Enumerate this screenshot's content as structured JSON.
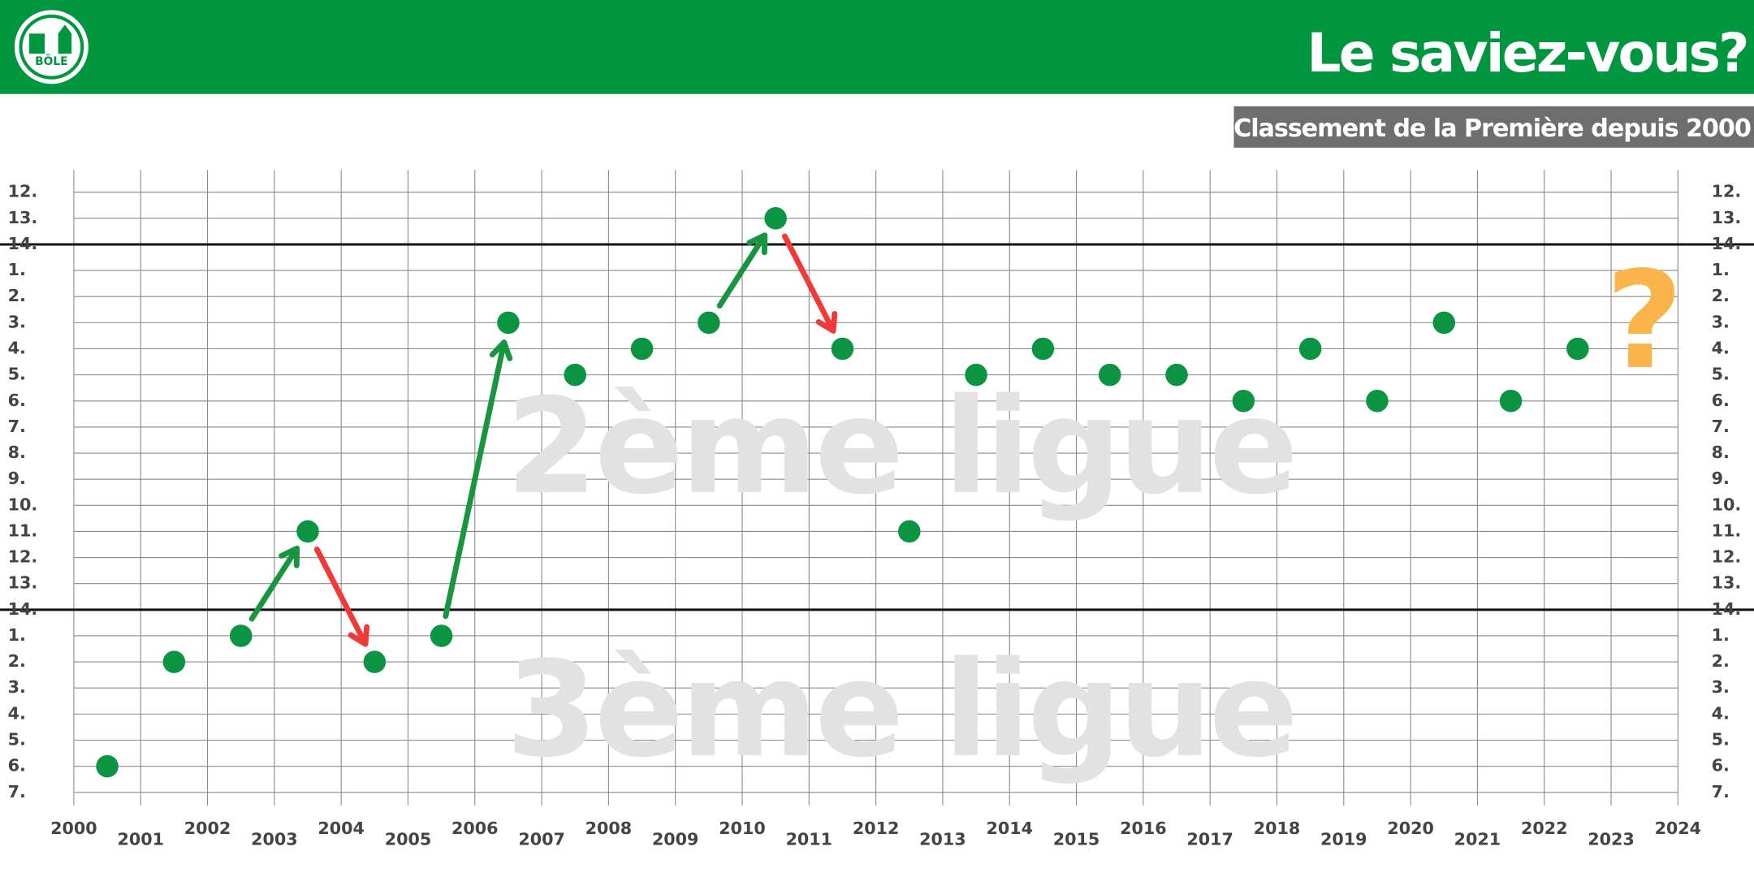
{
  "chart_data": {
    "type": "scatter",
    "title": "Le saviez-vous?",
    "subtitle": "Classement de la Première depuis 2000",
    "logo_text": "BÔLE",
    "annotations": [
      "2ème ligue",
      "3ème ligue",
      "?"
    ],
    "x": [
      2000.5,
      2001.5,
      2002.5,
      2003.5,
      2004.5,
      2005.5,
      2006.5,
      2007.5,
      2008.5,
      2009.5,
      2010.5,
      2011.5,
      2012.5,
      2013.5,
      2014.5,
      2015.5,
      2016.5,
      2017.5,
      2018.5,
      2019.5,
      2020.5,
      2021.5,
      2022.5
    ],
    "series": [
      {
        "color": "#0b9442",
        "values": [
          1,
          5,
          6,
          10,
          5,
          6,
          18,
          16,
          17,
          18,
          22,
          17,
          10,
          16,
          17,
          16,
          16,
          15,
          17,
          15,
          18,
          15,
          17
        ]
      }
    ],
    "xlim": [
      2000,
      2024
    ],
    "xticks": [
      2000,
      2001,
      2002,
      2003,
      2004,
      2005,
      2006,
      2007,
      2008,
      2009,
      2010,
      2011,
      2012,
      2013,
      2014,
      2015,
      2016,
      2017,
      2018,
      2019,
      2020,
      2021,
      2022,
      2023,
      2024
    ],
    "ylim": [
      -0.5,
      23.85
    ],
    "yticks": [
      {
        "value": 23,
        "label": "12."
      },
      {
        "value": 22,
        "label": "13."
      },
      {
        "value": 21,
        "label": "14."
      },
      {
        "value": 20,
        "label": "1."
      },
      {
        "value": 19,
        "label": "2."
      },
      {
        "value": 18,
        "label": "3."
      },
      {
        "value": 17,
        "label": "4."
      },
      {
        "value": 16,
        "label": "5."
      },
      {
        "value": 15,
        "label": "6."
      },
      {
        "value": 14,
        "label": "7."
      },
      {
        "value": 13,
        "label": "8."
      },
      {
        "value": 12,
        "label": "9."
      },
      {
        "value": 11,
        "label": "10."
      },
      {
        "value": 10,
        "label": "11."
      },
      {
        "value": 9,
        "label": "12."
      },
      {
        "value": 8,
        "label": "13."
      },
      {
        "value": 7,
        "label": "14."
      },
      {
        "value": 6,
        "label": "1."
      },
      {
        "value": 5,
        "label": "2."
      },
      {
        "value": 4,
        "label": "3."
      },
      {
        "value": 3,
        "label": "4."
      },
      {
        "value": 2,
        "label": "5."
      },
      {
        "value": 1,
        "label": "6."
      },
      {
        "value": 0,
        "label": "7."
      }
    ],
    "grid": true
  }
}
